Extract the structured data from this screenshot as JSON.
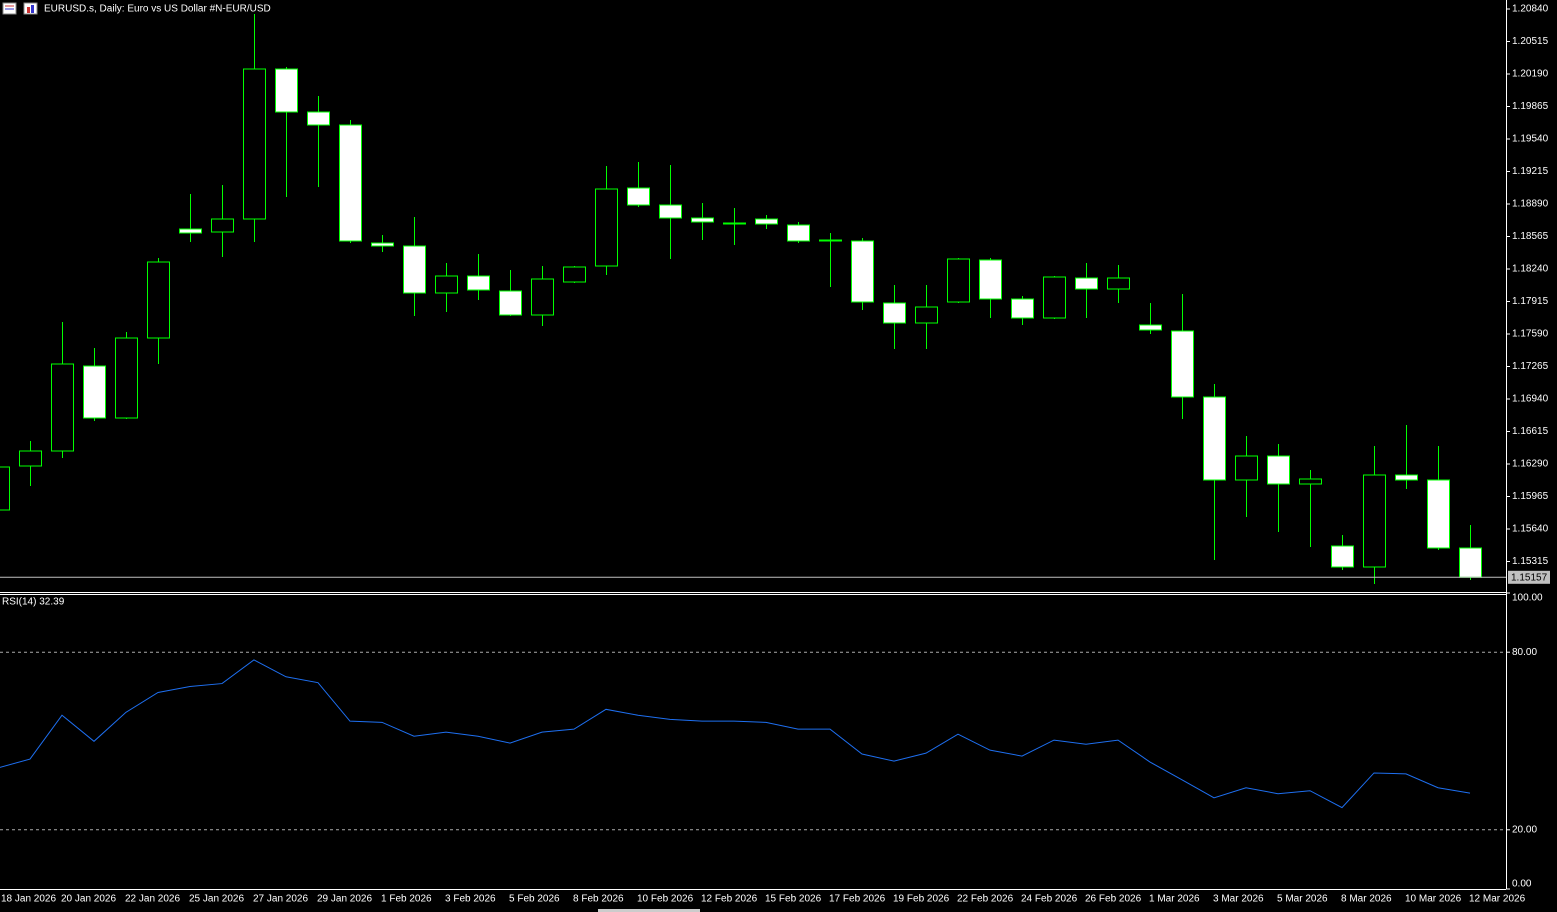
{
  "chart_data": [
    {
      "type": "candlestick",
      "title": "EURUSD.s, Daily:  Euro vs US Dollar #N-EUR/USD",
      "categories": [
        "18 Jan 2026",
        null,
        "20 Jan 2026",
        null,
        "22 Jan 2026",
        null,
        "25 Jan 2026",
        null,
        "27 Jan 2026",
        null,
        "29 Jan 2026",
        null,
        "1 Feb 2026",
        null,
        "3 Feb 2026",
        null,
        "5 Feb 2026",
        null,
        "8 Feb 2026",
        null,
        "10 Feb 2026",
        null,
        "12 Feb 2026",
        null,
        "15 Feb 2026",
        null,
        "17 Feb 2026",
        null,
        "19 Feb 2026",
        null,
        "22 Feb 2026",
        null,
        "24 Feb 2026",
        null,
        "26 Feb 2026",
        null,
        "1 Mar 2026",
        null,
        "3 Mar 2026",
        null,
        "5 Mar 2026",
        null,
        "8 Mar 2026",
        null,
        "10 Mar 2026",
        null,
        "12 Mar 2026"
      ],
      "open": [
        1.1583,
        1.1627,
        1.1642,
        1.1727,
        1.1675,
        1.1755,
        1.1864,
        1.1861,
        1.1874,
        1.2024,
        1.1981,
        1.1968,
        1.185,
        1.1847,
        1.18,
        1.1817,
        1.1802,
        1.1778,
        1.1811,
        1.1827,
        1.1905,
        1.1888,
        1.1875,
        1.1869,
        1.1874,
        1.1868,
        1.1852,
        1.1852,
        1.179,
        1.177,
        1.1791,
        1.1833,
        1.1794,
        1.1775,
        1.1815,
        1.1804,
        1.1768,
        1.1762,
        1.1696,
        1.1613,
        1.1637,
        1.1609,
        1.1547,
        1.1526,
        1.1618,
        1.1613,
        1.1545
      ],
      "high": [
        1.1633,
        1.1652,
        1.1771,
        1.1745,
        1.1761,
        1.1835,
        1.1899,
        1.1908,
        1.2079,
        1.2026,
        1.1997,
        1.1973,
        1.1858,
        1.1876,
        1.183,
        1.1839,
        1.1823,
        1.1827,
        1.1827,
        1.1927,
        1.1931,
        1.1928,
        1.189,
        1.1885,
        1.1878,
        1.1871,
        1.186,
        1.1855,
        1.1808,
        1.1808,
        1.1835,
        1.1835,
        1.1797,
        1.1817,
        1.183,
        1.1828,
        1.179,
        1.1799,
        1.1709,
        1.1657,
        1.1649,
        1.1623,
        1.1558,
        1.1647,
        1.1668,
        1.1647,
        1.1568
      ],
      "low": [
        1.1578,
        1.1607,
        1.1635,
        1.1672,
        1.1674,
        1.1729,
        1.1851,
        1.1836,
        1.1851,
        1.1896,
        1.1906,
        1.185,
        1.1841,
        1.1777,
        1.1781,
        1.1793,
        1.1777,
        1.1767,
        1.181,
        1.1818,
        1.1886,
        1.1834,
        1.1853,
        1.1848,
        1.1864,
        1.185,
        1.1806,
        1.1783,
        1.1744,
        1.1744,
        1.179,
        1.1775,
        1.1768,
        1.1774,
        1.1775,
        1.179,
        1.1759,
        1.1674,
        1.1533,
        1.1576,
        1.1561,
        1.1546,
        1.1523,
        1.1509,
        1.1604,
        1.1543,
        1.1513
      ],
      "close": [
        1.1626,
        1.1642,
        1.1729,
        1.1675,
        1.1755,
        1.1831,
        1.186,
        1.1874,
        1.2024,
        1.1981,
        1.1968,
        1.1852,
        1.1847,
        1.18,
        1.1817,
        1.1803,
        1.1778,
        1.1814,
        1.1826,
        1.1904,
        1.1888,
        1.1875,
        1.1871,
        1.187,
        1.1869,
        1.1852,
        1.1853,
        1.1791,
        1.177,
        1.1786,
        1.1834,
        1.1794,
        1.1775,
        1.1816,
        1.1804,
        1.1815,
        1.1763,
        1.1696,
        1.1613,
        1.1637,
        1.1609,
        1.1614,
        1.1526,
        1.1618,
        1.1613,
        1.1545,
        1.15157
      ],
      "up_color": "#000000",
      "down_color": "#ffffff",
      "wick_color": "#00ff00",
      "ylim": [
        1.1501,
        1.2093
      ],
      "yticks": [
        {
          "value": 1.2084,
          "label": "1.20840"
        },
        {
          "value": 1.20515,
          "label": "1.20515"
        },
        {
          "value": 1.2019,
          "label": "1.20190"
        },
        {
          "value": 1.19865,
          "label": "1.19865"
        },
        {
          "value": 1.1954,
          "label": "1.19540"
        },
        {
          "value": 1.19215,
          "label": "1.19215"
        },
        {
          "value": 1.1889,
          "label": "1.18890"
        },
        {
          "value": 1.18565,
          "label": "1.18565"
        },
        {
          "value": 1.1824,
          "label": "1.18240"
        },
        {
          "value": 1.17915,
          "label": "1.17915"
        },
        {
          "value": 1.1759,
          "label": "1.17590"
        },
        {
          "value": 1.17265,
          "label": "1.17265"
        },
        {
          "value": 1.1694,
          "label": "1.16940"
        },
        {
          "value": 1.16615,
          "label": "1.16615"
        },
        {
          "value": 1.1629,
          "label": "1.16290"
        },
        {
          "value": 1.15965,
          "label": "1.15965"
        },
        {
          "value": 1.1564,
          "label": "1.15640"
        },
        {
          "value": 1.15315,
          "label": "1.15315"
        }
      ],
      "current_price": {
        "value": 1.15157,
        "label": "1.15157"
      }
    },
    {
      "type": "line",
      "title": "RSI(14) 32.39",
      "values": [
        40.9,
        43.9,
        58.7,
        49.9,
        59.7,
        66.4,
        68.4,
        69.4,
        77.4,
        71.7,
        69.7,
        56.7,
        56.3,
        51.6,
        53.0,
        51.6,
        49.3,
        53.0,
        54.0,
        60.7,
        58.7,
        57.3,
        56.7,
        56.7,
        56.3,
        54.0,
        54.0,
        45.6,
        43.2,
        45.9,
        52.3,
        46.9,
        44.9,
        50.3,
        48.9,
        50.3,
        42.9,
        36.9,
        30.8,
        34.2,
        32.2,
        33.2,
        27.5,
        39.2,
        38.9,
        34.2,
        32.39
      ],
      "color": "#1e6ff0",
      "ylim": [
        0,
        100
      ],
      "yticks": [
        {
          "value": 100,
          "label": "100.00"
        },
        {
          "value": 80,
          "label": "80.00"
        },
        {
          "value": 20,
          "label": "20.00"
        },
        {
          "value": 0,
          "label": "0.00"
        }
      ]
    }
  ]
}
